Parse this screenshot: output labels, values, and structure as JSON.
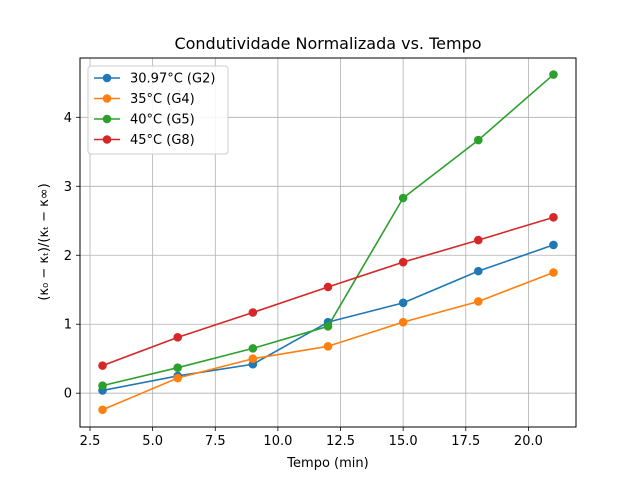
{
  "chart_data": {
    "type": "line",
    "title": "Condutividade Normalizada vs. Tempo",
    "xlabel": "Tempo (min)",
    "ylabel": "(κ₀ − κₜ)/(κₜ − κ∞)",
    "xlim": [
      2.1,
      21.9
    ],
    "ylim": [
      -0.49,
      4.86
    ],
    "xticks": [
      2.5,
      5.0,
      7.5,
      10.0,
      12.5,
      15.0,
      17.5,
      20.0
    ],
    "xtick_labels": [
      "2.5",
      "5.0",
      "7.5",
      "10.0",
      "12.5",
      "15.0",
      "17.5",
      "20.0"
    ],
    "yticks": [
      0,
      1,
      2,
      3,
      4
    ],
    "ytick_labels": [
      "0",
      "1",
      "2",
      "3",
      "4"
    ],
    "grid": true,
    "legend_position": "upper-left",
    "x": [
      3,
      6,
      9,
      12,
      15,
      18,
      21
    ],
    "series": [
      {
        "name": "30.97°C (G2)",
        "color": "#1f77b4",
        "values": [
          0.04,
          0.25,
          0.42,
          1.03,
          1.31,
          1.77,
          2.15
        ]
      },
      {
        "name": "35°C (G4)",
        "color": "#ff7f0e",
        "values": [
          -0.24,
          0.22,
          0.5,
          0.68,
          1.03,
          1.33,
          1.75
        ]
      },
      {
        "name": "40°C (G5)",
        "color": "#2ca02c",
        "values": [
          0.11,
          0.37,
          0.65,
          0.97,
          2.83,
          3.67,
          4.62
        ]
      },
      {
        "name": "45°C (G8)",
        "color": "#d62728",
        "values": [
          0.4,
          0.81,
          1.17,
          1.54,
          1.9,
          2.22,
          2.55
        ]
      }
    ]
  }
}
